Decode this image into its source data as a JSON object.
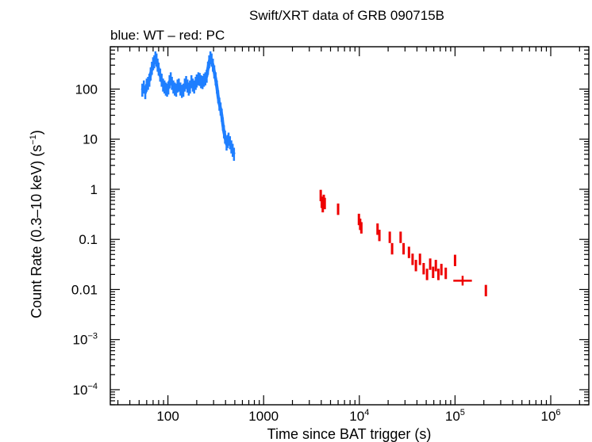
{
  "chart_data": {
    "type": "scatter",
    "title": "Swift/XRT data of GRB 090715B",
    "subtitle": "blue: WT – red: PC",
    "xlabel": "Time since BAT trigger (s)",
    "ylabel": "Count Rate (0.3–10 keV) (s",
    "ylabel_sup": "−1",
    "ylabel_close": ")",
    "xscale": "log",
    "yscale": "log",
    "xlim": [
      25,
      2500000
    ],
    "ylim": [
      5e-05,
      700
    ],
    "x_ticks": [
      {
        "value": 100,
        "base": "100",
        "sup": ""
      },
      {
        "value": 1000,
        "base": "1000",
        "sup": ""
      },
      {
        "value": 10000,
        "base": "10",
        "sup": "4"
      },
      {
        "value": 100000,
        "base": "10",
        "sup": "5"
      },
      {
        "value": 1000000,
        "base": "10",
        "sup": "6"
      }
    ],
    "y_ticks": [
      {
        "value": 0.0001,
        "base": "10",
        "sup": "−4"
      },
      {
        "value": 0.001,
        "base": "10",
        "sup": "−3"
      },
      {
        "value": 0.01,
        "base": "0.01",
        "sup": ""
      },
      {
        "value": 0.1,
        "base": "0.1",
        "sup": ""
      },
      {
        "value": 1,
        "base": "1",
        "sup": ""
      },
      {
        "value": 10,
        "base": "10",
        "sup": ""
      },
      {
        "value": 100,
        "base": "100",
        "sup": ""
      }
    ],
    "grid": false,
    "series": [
      {
        "name": "WT",
        "color": "#1f7fff",
        "points": [
          [
            54,
            95
          ],
          [
            56,
            110
          ],
          [
            58,
            85
          ],
          [
            60,
            120
          ],
          [
            62,
            130
          ],
          [
            64,
            150
          ],
          [
            66,
            200
          ],
          [
            68,
            260
          ],
          [
            70,
            320
          ],
          [
            72,
            350
          ],
          [
            74,
            420
          ],
          [
            76,
            380
          ],
          [
            78,
            300
          ],
          [
            80,
            250
          ],
          [
            83,
            190
          ],
          [
            86,
            150
          ],
          [
            89,
            120
          ],
          [
            92,
            110
          ],
          [
            95,
            100
          ],
          [
            98,
            95
          ],
          [
            101,
            105
          ],
          [
            104,
            140
          ],
          [
            107,
            160
          ],
          [
            110,
            130
          ],
          [
            114,
            110
          ],
          [
            118,
            100
          ],
          [
            122,
            95
          ],
          [
            126,
            115
          ],
          [
            130,
            120
          ],
          [
            135,
            100
          ],
          [
            140,
            90
          ],
          [
            145,
            95
          ],
          [
            150,
            120
          ],
          [
            155,
            135
          ],
          [
            160,
            115
          ],
          [
            165,
            100
          ],
          [
            170,
            110
          ],
          [
            176,
            140
          ],
          [
            182,
            120
          ],
          [
            188,
            110
          ],
          [
            195,
            130
          ],
          [
            200,
            145
          ],
          [
            208,
            160
          ],
          [
            215,
            155
          ],
          [
            222,
            140
          ],
          [
            230,
            135
          ],
          [
            238,
            150
          ],
          [
            246,
            160
          ],
          [
            254,
            180
          ],
          [
            262,
            260
          ],
          [
            270,
            350
          ],
          [
            278,
            420
          ],
          [
            286,
            380
          ],
          [
            295,
            300
          ],
          [
            305,
            220
          ],
          [
            315,
            160
          ],
          [
            325,
            110
          ],
          [
            335,
            70
          ],
          [
            345,
            50
          ],
          [
            355,
            40
          ],
          [
            365,
            30
          ],
          [
            375,
            20
          ],
          [
            385,
            14
          ],
          [
            395,
            11
          ],
          [
            410,
            8
          ],
          [
            420,
            9
          ],
          [
            430,
            10
          ],
          [
            445,
            8.5
          ],
          [
            460,
            7
          ],
          [
            475,
            6
          ],
          [
            490,
            5
          ]
        ]
      },
      {
        "name": "PC",
        "color": "#ee0000",
        "points": [
          [
            3950,
            0.75
          ],
          [
            4050,
            0.55
          ],
          [
            4150,
            0.45
          ],
          [
            4250,
            0.6
          ],
          [
            4350,
            0.52
          ],
          [
            6000,
            0.4
          ],
          [
            9900,
            0.25
          ],
          [
            10200,
            0.2
          ],
          [
            10500,
            0.17
          ],
          [
            15500,
            0.16
          ],
          [
            16200,
            0.12
          ],
          [
            20800,
            0.11
          ],
          [
            22000,
            0.065
          ],
          [
            27000,
            0.11
          ],
          [
            29000,
            0.065
          ],
          [
            33000,
            0.055
          ],
          [
            36000,
            0.04
          ],
          [
            39000,
            0.03
          ],
          [
            43000,
            0.04
          ],
          [
            47000,
            0.026
          ],
          [
            51000,
            0.02
          ],
          [
            55000,
            0.032
          ],
          [
            59000,
            0.022
          ],
          [
            63000,
            0.03
          ],
          [
            67000,
            0.02
          ],
          [
            72000,
            0.025
          ],
          [
            80000,
            0.021
          ],
          [
            100000,
            0.038
          ],
          [
            120000,
            0.015
          ],
          [
            210000,
            0.0095
          ]
        ]
      }
    ]
  }
}
